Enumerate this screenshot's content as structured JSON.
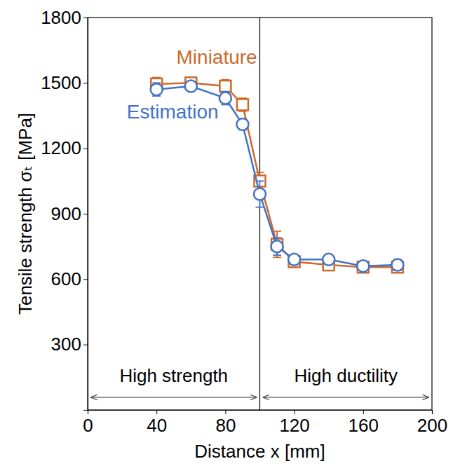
{
  "chart_data": {
    "type": "line",
    "xlabel": "Distance x [mm]",
    "ylabel": "Tensile strength σₜ [MPa]",
    "x": [
      40,
      60,
      80,
      90,
      100,
      110,
      120,
      140,
      160,
      180
    ],
    "series": [
      {
        "name": "Miniature",
        "color": "#cc6a2c",
        "marker": "square",
        "values": [
          1495,
          1500,
          1485,
          1400,
          1050,
          760,
          680,
          665,
          655,
          655
        ],
        "errors": [
          30,
          25,
          30,
          30,
          40,
          60,
          20,
          20,
          20,
          20
        ]
      },
      {
        "name": "Estimation",
        "color": "#4472c4",
        "marker": "circle",
        "values": [
          1470,
          1485,
          1430,
          1310,
          990,
          750,
          690,
          690,
          660,
          665
        ],
        "errors": [
          30,
          20,
          30,
          25,
          60,
          40,
          20,
          20,
          20,
          25
        ]
      }
    ],
    "xlim": [
      0,
      200
    ],
    "xticks": [
      0,
      40,
      80,
      120,
      160,
      200
    ],
    "ylim": [
      0,
      1800
    ],
    "yticks": [
      300,
      600,
      900,
      1200,
      1500,
      1800
    ],
    "regions": [
      {
        "label": "High strength",
        "x": [
          0,
          100
        ]
      },
      {
        "label": "High ductility",
        "x": [
          100,
          200
        ]
      }
    ]
  }
}
